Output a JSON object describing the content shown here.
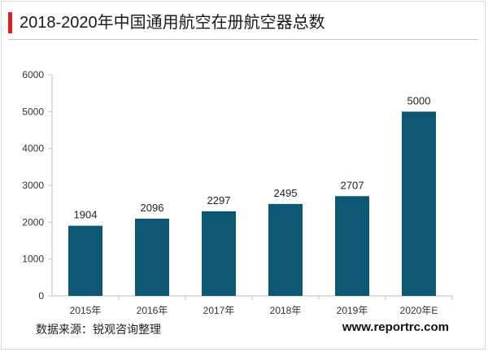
{
  "chart_data": {
    "type": "bar",
    "title": "2018-2020年中国通用航空在册航空器总数",
    "categories": [
      "2015年",
      "2016年",
      "2017年",
      "2018年",
      "2019年",
      "2020年E"
    ],
    "values": [
      1904,
      2096,
      2297,
      2495,
      2707,
      5000
    ],
    "ylim": [
      0,
      6000
    ],
    "yticks": [
      0,
      1000,
      2000,
      3000,
      4000,
      5000,
      6000
    ],
    "grid": false,
    "bar_color": "#0e5772",
    "data_labels": true
  },
  "footer": {
    "source": "数据来源：锐观咨询整理",
    "website": "www.reportrc.com"
  }
}
